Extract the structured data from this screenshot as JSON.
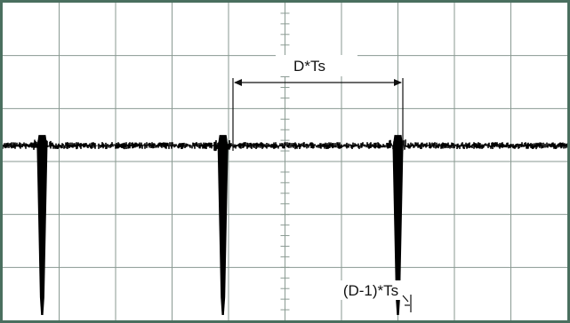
{
  "chart_data": {
    "type": "line",
    "grid": true,
    "grid_divisions": {
      "x": 10,
      "y": 6
    },
    "annotations": {
      "period": "D*Ts",
      "offset": "(D-1)*Ts"
    },
    "series": [
      {
        "pulse_positions_div": [
          0.7,
          3.9,
          7.0
        ],
        "baseline_div": 0.3,
        "pulse_depth_div": -2.9
      }
    ],
    "colors": {
      "frame": "#4a6f5f",
      "grid": "#8a9a92",
      "trace": "#000000",
      "background": "#ffffff"
    }
  }
}
